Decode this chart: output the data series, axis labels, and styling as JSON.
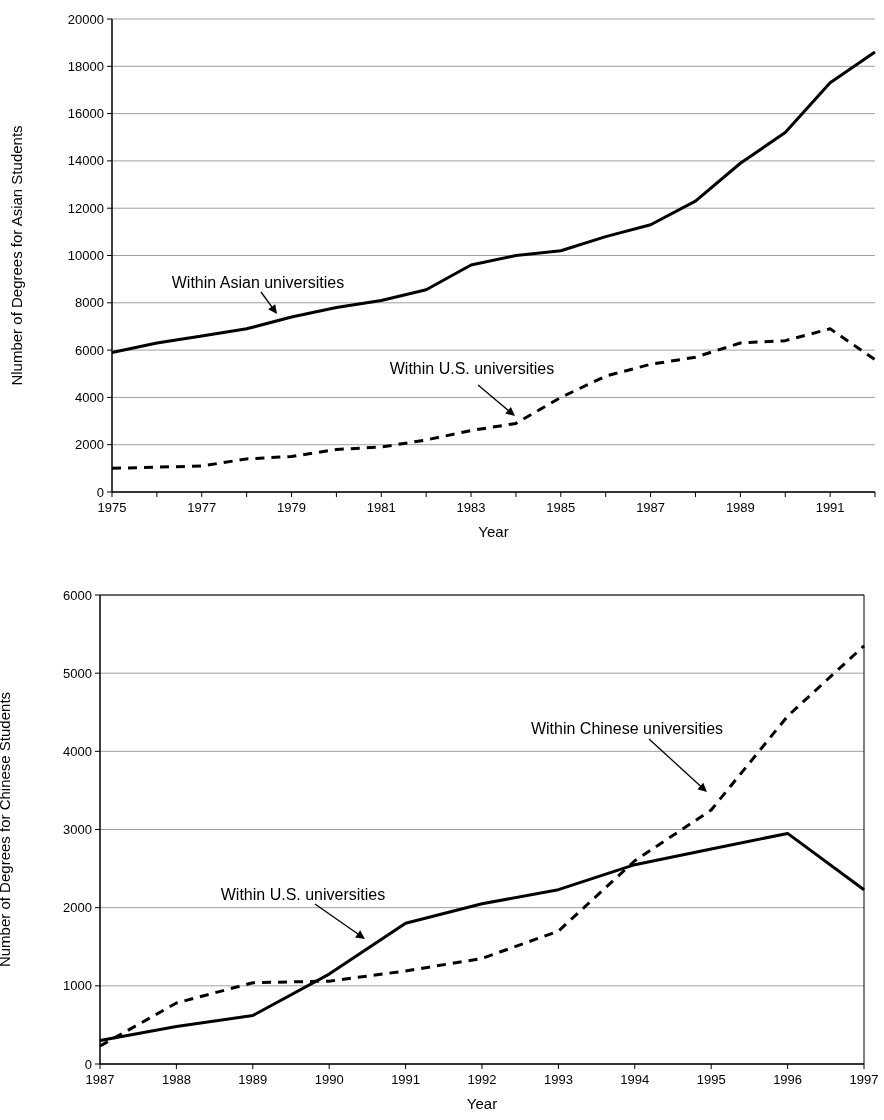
{
  "chart_data": [
    {
      "type": "line",
      "xlabel": "Year",
      "ylabel": "Nlumber of Degrees for Asian Students",
      "x": [
        1975,
        1976,
        1977,
        1978,
        1979,
        1980,
        1981,
        1982,
        1983,
        1984,
        1985,
        1986,
        1987,
        1988,
        1989,
        1990,
        1991,
        1992
      ],
      "series": [
        {
          "color": "#000000",
          "line_style": "solid",
          "values": [
            5900,
            6300,
            6600,
            6900,
            7400,
            7800,
            8100,
            8550,
            9600,
            10000,
            10200,
            10800,
            11300,
            12300,
            13900,
            15200,
            17300,
            18600
          ]
        },
        {
          "color": "#000000",
          "line_style": "dashed",
          "values": [
            1000,
            1050,
            1100,
            1400,
            1500,
            1800,
            1900,
            2200,
            2600,
            2900,
            4000,
            4900,
            5400,
            5700,
            6300,
            6400,
            6900,
            5600
          ]
        }
      ],
      "xlim": [
        1975,
        1992
      ],
      "xticks": [
        1975,
        {
          "value": 1976,
          "label": null
        },
        1977,
        {
          "value": 1978,
          "label": null
        },
        1979,
        {
          "value": 1980,
          "label": null
        },
        1981,
        {
          "value": 1982,
          "label": null
        },
        1983,
        {
          "value": 1984,
          "label": null
        },
        1985,
        {
          "value": 1986,
          "label": null
        },
        1987,
        {
          "value": 1988,
          "label": null
        },
        1989,
        {
          "value": 1990,
          "label": null
        },
        1991,
        {
          "value": 1992,
          "label": null
        }
      ],
      "ylim": [
        0,
        20000
      ],
      "yticks": [
        0,
        2000,
        4000,
        6000,
        8000,
        10000,
        12000,
        14000,
        16000,
        18000,
        20000
      ],
      "grid": "y",
      "annotations": [
        "Within Asian universities",
        "Within U.S. universities"
      ]
    },
    {
      "type": "line",
      "xlabel": "Year",
      "ylabel": "Number of Degrees for Chinese Students",
      "x": [
        1987,
        1988,
        1989,
        1990,
        1991,
        1992,
        1993,
        1994,
        1995,
        1996,
        1997
      ],
      "series": [
        {
          "color": "#000000",
          "line_style": "dashed",
          "values": [
            230,
            780,
            1040,
            1060,
            1190,
            1350,
            1700,
            2600,
            3250,
            4450,
            5350
          ]
        },
        {
          "color": "#000000",
          "line_style": "solid",
          "values": [
            300,
            480,
            620,
            1150,
            1800,
            2050,
            2230,
            2550,
            2750,
            2950,
            2230
          ]
        }
      ],
      "xlim": [
        1987,
        1997
      ],
      "xticks": [
        1987,
        1988,
        1989,
        1990,
        1991,
        1992,
        1993,
        1994,
        1995,
        1996,
        1997
      ],
      "ylim": [
        0,
        6000
      ],
      "yticks": [
        0,
        1000,
        2000,
        3000,
        4000,
        5000,
        6000
      ],
      "grid": "y",
      "annotations": [
        "Within Chinese universities",
        "Within U.S. universities"
      ]
    }
  ]
}
